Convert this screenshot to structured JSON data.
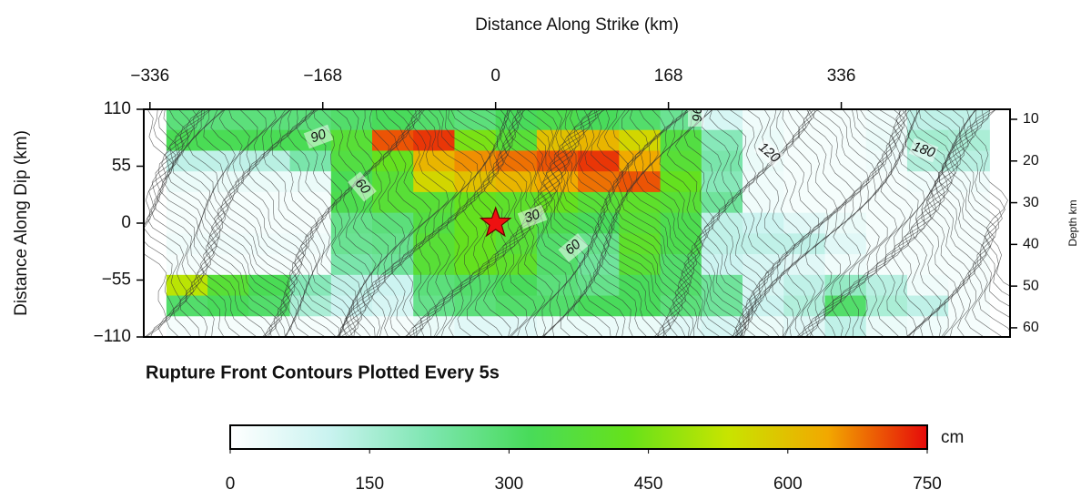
{
  "chart_data": {
    "type": "heatmap",
    "x_label": "Distance Along Strike (km)",
    "y_label": "Distance Along Dip (km)",
    "y2_label": "Depth km",
    "annotation": "Rupture Front Contours Plotted Every 5s",
    "colorbar_label": "cm",
    "contour_labels": [
      "90",
      "60",
      "30",
      "60",
      "96",
      "120",
      "180"
    ],
    "xlim": [
      -342,
      500
    ],
    "xticks": [
      {
        "value": -336,
        "label": "−336"
      },
      {
        "value": -168,
        "label": "−168"
      },
      0,
      168,
      336
    ],
    "ylim": [
      -110,
      110
    ],
    "yticks": [
      110,
      55,
      0,
      {
        "value": -55,
        "label": "−55"
      },
      {
        "value": -110,
        "label": "−110"
      }
    ],
    "y2lim": [
      7.6,
      62.2
    ],
    "y2ticks": [
      10,
      20,
      30,
      40,
      50,
      60
    ],
    "x_edges": [
      -320,
      -280,
      -240,
      -200,
      -160,
      -120,
      -80,
      -40,
      0,
      40,
      80,
      120,
      160,
      200,
      240,
      280,
      320,
      360,
      400,
      440,
      480
    ],
    "y_edges": [
      110,
      90,
      70,
      50,
      30,
      10,
      -10,
      -30,
      -50,
      -70,
      -90,
      -110
    ],
    "z": [
      [
        280,
        280,
        280,
        280,
        300,
        320,
        300,
        280,
        320,
        340,
        320,
        300,
        250,
        80,
        30,
        20,
        20,
        30,
        120,
        120
      ],
      [
        330,
        330,
        330,
        330,
        380,
        700,
        720,
        450,
        380,
        600,
        620,
        560,
        360,
        200,
        40,
        20,
        20,
        40,
        160,
        150
      ],
      [
        120,
        120,
        130,
        220,
        360,
        420,
        620,
        660,
        680,
        700,
        720,
        640,
        380,
        220,
        40,
        20,
        20,
        30,
        140,
        130
      ],
      [
        40,
        40,
        40,
        40,
        330,
        380,
        560,
        600,
        620,
        640,
        680,
        700,
        420,
        200,
        30,
        20,
        20,
        20,
        30,
        30
      ],
      [
        20,
        20,
        20,
        20,
        340,
        380,
        380,
        420,
        400,
        420,
        380,
        400,
        380,
        240,
        30,
        20,
        20,
        20,
        20,
        20
      ],
      [
        20,
        20,
        20,
        20,
        260,
        280,
        360,
        420,
        380,
        340,
        320,
        380,
        340,
        120,
        100,
        60,
        40,
        20,
        20,
        20
      ],
      [
        30,
        30,
        30,
        30,
        250,
        260,
        380,
        420,
        380,
        300,
        260,
        400,
        340,
        120,
        120,
        120,
        60,
        20,
        20,
        20
      ],
      [
        20,
        20,
        20,
        20,
        220,
        240,
        380,
        420,
        400,
        300,
        240,
        380,
        300,
        100,
        80,
        60,
        30,
        20,
        20,
        20
      ],
      [
        520,
        380,
        330,
        200,
        120,
        100,
        280,
        300,
        320,
        280,
        260,
        320,
        300,
        240,
        80,
        120,
        180,
        130,
        30,
        20
      ],
      [
        300,
        320,
        300,
        150,
        100,
        80,
        260,
        280,
        300,
        300,
        320,
        320,
        280,
        240,
        100,
        140,
        300,
        150,
        120,
        20
      ],
      [
        20,
        20,
        20,
        20,
        20,
        20,
        40,
        60,
        60,
        40,
        40,
        40,
        60,
        80,
        40,
        60,
        120,
        40,
        30,
        20
      ]
    ],
    "hypocenter": {
      "x": 0,
      "y": 0
    },
    "clim": [
      0,
      750
    ],
    "cticks": [
      0,
      150,
      300,
      450,
      600,
      750
    ],
    "colorscale": [
      "#ffffff",
      "#c9f3f0",
      "#7de6b0",
      "#48db5a",
      "#66e21a",
      "#c8e400",
      "#f2a800",
      "#e60a0a"
    ]
  }
}
